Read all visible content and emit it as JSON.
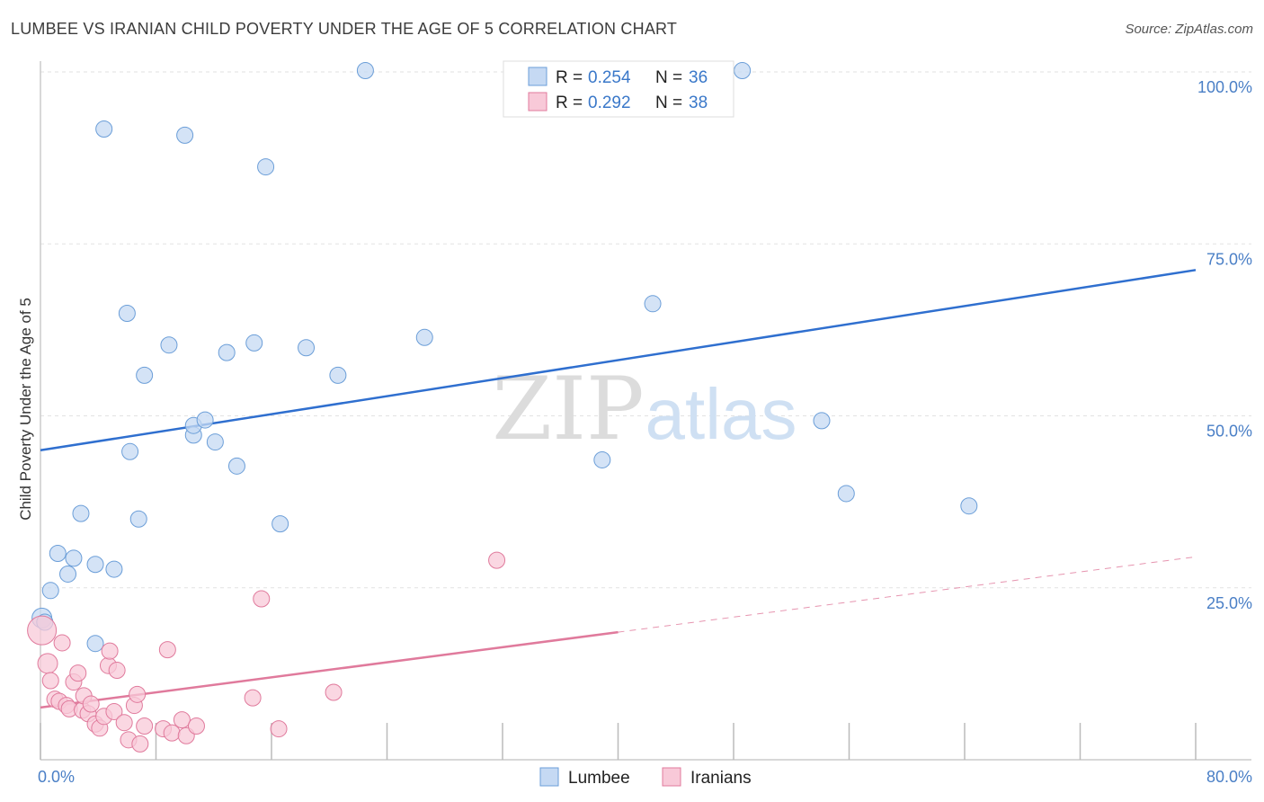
{
  "title": "LUMBEE VS IRANIAN CHILD POVERTY UNDER THE AGE OF 5 CORRELATION CHART",
  "source": "Source: ZipAtlas.com",
  "watermark": {
    "zip": "ZIP",
    "atlas": "atlas"
  },
  "chart_data": {
    "type": "scatter",
    "ylabel": "Child Poverty Under the Age of 5",
    "xlim": [
      0,
      80
    ],
    "ylim": [
      0,
      100
    ],
    "x_tick_labels": [
      {
        "value": 0,
        "label": "0.0%"
      },
      {
        "value": 80,
        "label": "80.0%"
      }
    ],
    "y_tick_labels": [
      {
        "value": 25,
        "label": "25.0%"
      },
      {
        "value": 50,
        "label": "50.0%"
      },
      {
        "value": 75,
        "label": "75.0%"
      },
      {
        "value": 100,
        "label": "100.0%"
      }
    ],
    "grid": true,
    "legend_position": "top-center",
    "series": [
      {
        "name": "Lumbee",
        "color": "#6b9ed8",
        "fill": "#c5d9f3",
        "stats": {
          "r_label": "R =",
          "r": "0.254",
          "n_label": "N =",
          "n": "36"
        },
        "trend": {
          "x0": 0,
          "y0": 45.0,
          "x1": 80,
          "y1": 71.2,
          "dashed_from": null
        },
        "points": [
          [
            0.1,
            20.6
          ],
          [
            0.7,
            24.6
          ],
          [
            1.2,
            30.0
          ],
          [
            1.9,
            27.0
          ],
          [
            2.3,
            29.3
          ],
          [
            2.8,
            35.8
          ],
          [
            3.8,
            16.9
          ],
          [
            3.8,
            28.4
          ],
          [
            4.4,
            91.7
          ],
          [
            5.1,
            27.7
          ],
          [
            6.0,
            64.9
          ],
          [
            6.2,
            44.8
          ],
          [
            6.8,
            35.0
          ],
          [
            7.2,
            55.9
          ],
          [
            8.9,
            60.3
          ],
          [
            10.0,
            90.8
          ],
          [
            10.6,
            47.2
          ],
          [
            10.6,
            48.6
          ],
          [
            11.4,
            49.4
          ],
          [
            12.1,
            46.2
          ],
          [
            12.9,
            59.2
          ],
          [
            13.6,
            42.7
          ],
          [
            14.8,
            60.6
          ],
          [
            15.6,
            86.2
          ],
          [
            16.6,
            34.3
          ],
          [
            18.4,
            59.9
          ],
          [
            20.6,
            55.9
          ],
          [
            22.5,
            100.2
          ],
          [
            26.6,
            61.4
          ],
          [
            38.9,
            43.6
          ],
          [
            42.4,
            66.3
          ],
          [
            48.6,
            100.2
          ],
          [
            54.1,
            49.3
          ],
          [
            55.8,
            38.7
          ],
          [
            64.3,
            36.9
          ],
          [
            0.3,
            20.0
          ]
        ]
      },
      {
        "name": "Iranians",
        "color": "#e07a9c",
        "fill": "#f8c9d8",
        "stats": {
          "r_label": "R =",
          "r": "0.292",
          "n_label": "N =",
          "n": "38"
        },
        "trend": {
          "x0": 0,
          "y0": 7.6,
          "x1": 80,
          "y1": 29.5,
          "dashed_from": 40
        },
        "points": [
          [
            0.1,
            18.8
          ],
          [
            0.5,
            14.0
          ],
          [
            0.7,
            11.5
          ],
          [
            1.0,
            8.8
          ],
          [
            1.3,
            8.5
          ],
          [
            1.5,
            17.0
          ],
          [
            1.8,
            7.9
          ],
          [
            2.0,
            7.4
          ],
          [
            2.3,
            11.3
          ],
          [
            2.6,
            12.6
          ],
          [
            2.9,
            7.2
          ],
          [
            3.0,
            9.3
          ],
          [
            3.3,
            6.7
          ],
          [
            3.5,
            8.1
          ],
          [
            3.8,
            5.2
          ],
          [
            4.1,
            4.6
          ],
          [
            4.4,
            6.3
          ],
          [
            4.7,
            13.7
          ],
          [
            4.8,
            15.8
          ],
          [
            5.1,
            7.0
          ],
          [
            5.3,
            13.0
          ],
          [
            5.8,
            5.4
          ],
          [
            6.1,
            2.9
          ],
          [
            6.5,
            7.9
          ],
          [
            6.7,
            9.5
          ],
          [
            6.9,
            2.3
          ],
          [
            7.2,
            4.9
          ],
          [
            8.5,
            4.5
          ],
          [
            8.8,
            16.0
          ],
          [
            9.1,
            3.9
          ],
          [
            9.8,
            5.8
          ],
          [
            10.1,
            3.5
          ],
          [
            10.8,
            4.9
          ],
          [
            14.7,
            9.0
          ],
          [
            15.3,
            23.4
          ],
          [
            16.5,
            4.5
          ],
          [
            20.3,
            9.8
          ],
          [
            31.6,
            29.0
          ]
        ]
      }
    ]
  }
}
